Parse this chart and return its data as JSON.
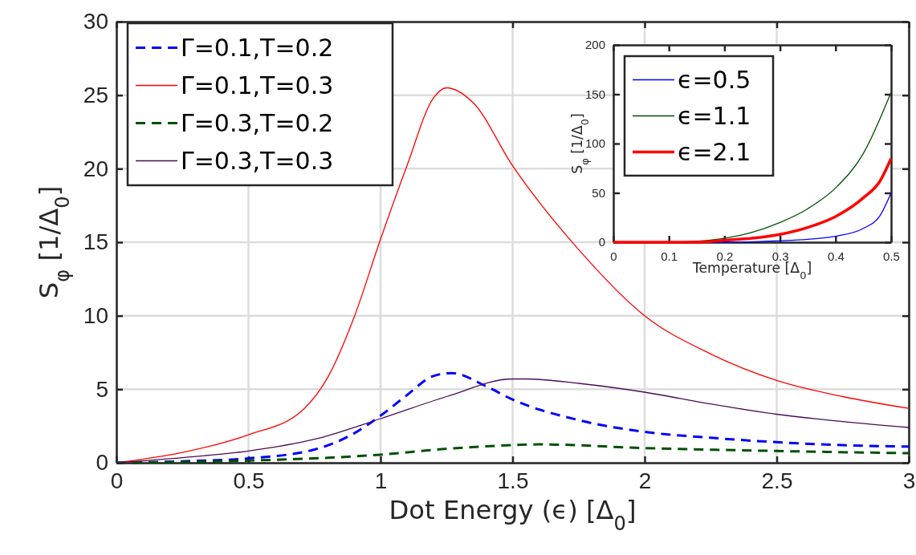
{
  "chart_data": [
    {
      "type": "line",
      "xlabel": "Dot Energy (ϵ) [Δ$_{0}$]",
      "ylabel": "S$_{φ}$ [1/Δ$_{0}$]",
      "xlim": [
        0,
        3
      ],
      "ylim": [
        0,
        30
      ],
      "xticks": [
        0,
        0.5,
        1,
        1.5,
        2,
        2.5,
        3
      ],
      "yticks": [
        0,
        5,
        10,
        15,
        20,
        25,
        30
      ],
      "grid": true,
      "legend": "top left",
      "series": [
        {
          "name": "Γ=0.1,T=0.2",
          "color": "#0000ff",
          "line_style": "dashed",
          "x": [
            0,
            0.25,
            0.5,
            0.75,
            0.9,
            1.0,
            1.1,
            1.2,
            1.27,
            1.4,
            1.5,
            1.75,
            2,
            2.25,
            2.5,
            2.75,
            3
          ],
          "values": [
            0,
            0.1,
            0.3,
            0.9,
            2.0,
            3.2,
            4.6,
            5.9,
            6.1,
            5.2,
            4.3,
            2.9,
            2.1,
            1.7,
            1.4,
            1.2,
            1.1
          ]
        },
        {
          "name": "Γ=0.1,T=0.3",
          "color": "#ff0000",
          "line_style": "solid",
          "x": [
            0,
            0.25,
            0.5,
            0.7,
            0.8,
            0.9,
            1.0,
            1.1,
            1.2,
            1.25,
            1.35,
            1.5,
            1.75,
            2,
            2.25,
            2.5,
            2.75,
            3
          ],
          "values": [
            0,
            0.7,
            1.9,
            3.5,
            5.8,
            9.9,
            15.2,
            20.2,
            24.8,
            25.5,
            24.5,
            20.2,
            14.5,
            10,
            7.4,
            5.6,
            4.5,
            3.7
          ]
        },
        {
          "name": "Γ=0.3,T=0.2",
          "color": "#005000",
          "line_style": "dashed",
          "x": [
            0,
            0.5,
            1,
            1.25,
            1.5,
            1.6,
            2,
            2.5,
            3
          ],
          "values": [
            0,
            0.15,
            0.55,
            0.95,
            1.2,
            1.25,
            1.0,
            0.8,
            0.65
          ]
        },
        {
          "name": "Γ=0.3,T=0.3",
          "color": "#4b0a5a",
          "line_style": "solid",
          "x": [
            0,
            0.25,
            0.5,
            0.75,
            1,
            1.25,
            1.5,
            1.55,
            1.75,
            2,
            2.25,
            2.5,
            2.75,
            3
          ],
          "values": [
            0,
            0.35,
            0.8,
            1.6,
            3.0,
            4.5,
            5.7,
            5.7,
            5.4,
            4.8,
            4.0,
            3.3,
            2.8,
            2.4
          ]
        }
      ]
    },
    {
      "type": "line",
      "xlabel": "Temperature [Δ$_{0}$]",
      "ylabel": "S$_{φ}$ [1/Δ$_{0}$]",
      "xlim": [
        0,
        0.5
      ],
      "ylim": [
        0,
        200
      ],
      "xticks": [
        0,
        0.1,
        0.2,
        0.3,
        0.4,
        0.5
      ],
      "yticks": [
        0,
        50,
        100,
        150,
        200
      ],
      "grid": false,
      "legend": "top left",
      "series": [
        {
          "name": "ϵ=0.5",
          "color": "#0000ff",
          "line_style": "solid",
          "x": [
            0,
            0.1,
            0.2,
            0.3,
            0.35,
            0.4,
            0.45,
            0.48,
            0.5
          ],
          "values": [
            0,
            0,
            0,
            1.5,
            3,
            6,
            14,
            27,
            50
          ]
        },
        {
          "name": "ϵ=1.1",
          "color": "#005000",
          "line_style": "solid",
          "x": [
            0,
            0.1,
            0.15,
            0.2,
            0.25,
            0.3,
            0.35,
            0.4,
            0.45,
            0.5
          ],
          "values": [
            0,
            0,
            1,
            4,
            10,
            20,
            34,
            55,
            90,
            152
          ]
        },
        {
          "name": "ϵ=2.1",
          "color": "#ff0000",
          "line_style": "solid",
          "x": [
            0,
            0.1,
            0.15,
            0.2,
            0.25,
            0.3,
            0.35,
            0.4,
            0.45,
            0.48,
            0.5
          ],
          "values": [
            0,
            0,
            0,
            2,
            4,
            8,
            15,
            26,
            45,
            62,
            85
          ]
        }
      ]
    }
  ]
}
